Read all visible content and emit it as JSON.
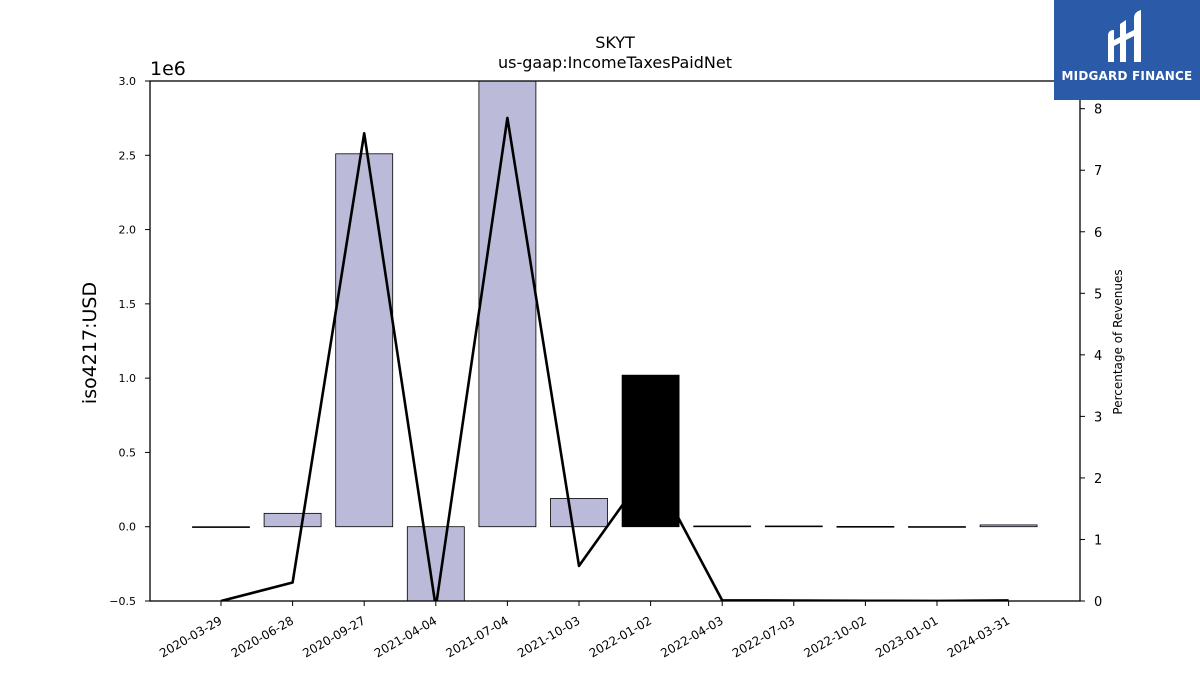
{
  "logo": {
    "text": "MIDGARD FINANCE",
    "background": "#2a5aa8"
  },
  "chart_data": {
    "type": "bar",
    "title": "SKYT",
    "subtitle": "us-gaap:IncomeTaxesPaidNet",
    "ylabel": "iso4217:USD",
    "y_offset_label": "1e6",
    "y2label": "Percentage of Revenues",
    "categories": [
      "2020-03-29",
      "2020-06-28",
      "2020-09-27",
      "2021-04-04",
      "2021-07-04",
      "2021-10-03",
      "2022-01-02",
      "2022-04-03",
      "2022-07-03",
      "2022-10-02",
      "2023-01-01",
      "2024-03-31"
    ],
    "series": [
      {
        "values": [
          0,
          90000,
          2510000,
          -500000,
          3010000,
          190000,
          1020000,
          5000,
          5000,
          2000,
          1000,
          12000
        ],
        "bar_colors": [
          "#bcbad9",
          "#bcbad9",
          "#bcbad9",
          "#bcbad9",
          "#bcbad9",
          "#bcbad9",
          "#000000",
          "#bcbad9",
          "#bcbad9",
          "#bcbad9",
          "#bcbad9",
          "#bcbad9"
        ]
      },
      {
        "axis": "right",
        "values": [
          0,
          0.3,
          7.6,
          -0.1,
          7.85,
          0.57,
          2.2,
          0.01,
          0.008,
          0.004,
          0.002,
          0.01
        ],
        "color": "#000000"
      }
    ],
    "ylim": [
      -0.5,
      3.0
    ],
    "y_ticks": [
      "−0.5",
      "0.0",
      "0.5",
      "1.0",
      "1.5",
      "2.0",
      "2.5",
      "3.0"
    ],
    "y2lim": [
      0,
      8.45
    ],
    "y2_ticks": [
      "0",
      "1",
      "2",
      "3",
      "4",
      "5",
      "6",
      "7",
      "8"
    ],
    "grid": false
  }
}
